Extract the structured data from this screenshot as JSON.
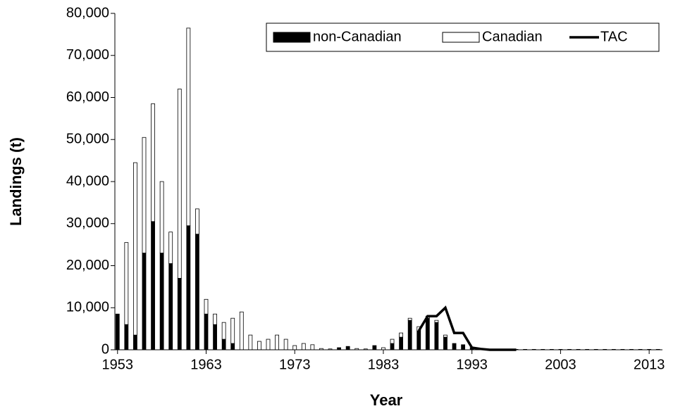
{
  "chart_data": {
    "type": "bar",
    "x_label": "Year",
    "y_label": "Landings (t)",
    "x": [
      1953,
      1954,
      1955,
      1956,
      1957,
      1958,
      1959,
      1960,
      1961,
      1962,
      1963,
      1964,
      1965,
      1966,
      1967,
      1968,
      1969,
      1970,
      1971,
      1972,
      1973,
      1974,
      1975,
      1976,
      1977,
      1978,
      1979,
      1980,
      1981,
      1982,
      1983,
      1984,
      1985,
      1986,
      1987,
      1988,
      1989,
      1990,
      1991,
      1992,
      1993,
      1994,
      1995,
      1996,
      1997,
      1998,
      1999,
      2000,
      2001,
      2002,
      2003,
      2004,
      2005,
      2006,
      2007,
      2008,
      2009,
      2010,
      2011,
      2012,
      2013,
      2014
    ],
    "series": [
      {
        "name": "non-Canadian",
        "color": "#000000",
        "stacked": true,
        "values": [
          8500,
          6000,
          3500,
          23000,
          30500,
          23000,
          20500,
          17000,
          29500,
          27500,
          8500,
          6000,
          2500,
          1500,
          0,
          0,
          0,
          0,
          0,
          0,
          0,
          0,
          0,
          0,
          0,
          500,
          800,
          0,
          0,
          1000,
          0,
          1500,
          3000,
          7000,
          4500,
          7500,
          6500,
          3000,
          1500,
          1200,
          500,
          0,
          0,
          0,
          0,
          0,
          0,
          0,
          0,
          0,
          0,
          0,
          0,
          0,
          0,
          0,
          0,
          0,
          0,
          0,
          0,
          0
        ]
      },
      {
        "name": "Canadian",
        "color": "#ffffff",
        "stacked": true,
        "values": [
          0,
          19500,
          41000,
          27500,
          28000,
          17000,
          7500,
          45000,
          47000,
          6000,
          3500,
          2500,
          4000,
          6000,
          9000,
          3500,
          2000,
          2500,
          3500,
          2500,
          1000,
          1500,
          1200,
          300,
          200,
          0,
          0,
          300,
          200,
          0,
          500,
          1000,
          1000,
          500,
          1000,
          500,
          500,
          500,
          0,
          0,
          0,
          100,
          100,
          100,
          100,
          100,
          100,
          100,
          100,
          100,
          100,
          100,
          100,
          100,
          100,
          100,
          100,
          100,
          100,
          100,
          100,
          100
        ]
      },
      {
        "name": "TAC",
        "color": "#000000",
        "type": "line",
        "values": [
          null,
          null,
          null,
          null,
          null,
          null,
          null,
          null,
          null,
          null,
          null,
          null,
          null,
          null,
          null,
          null,
          null,
          null,
          null,
          null,
          null,
          null,
          null,
          null,
          null,
          null,
          null,
          null,
          null,
          null,
          null,
          null,
          null,
          null,
          4500,
          8000,
          8000,
          10000,
          4000,
          4000,
          500,
          200,
          0,
          0,
          0,
          0,
          null,
          null,
          null,
          null,
          null,
          null,
          null,
          null,
          null,
          null,
          null,
          null,
          null,
          null,
          null,
          null
        ]
      }
    ],
    "xlim": [
      1952.7,
      2014.5
    ],
    "xticks": [
      1953,
      1963,
      1973,
      1983,
      1993,
      2003,
      2013
    ],
    "ylim": [
      0,
      80000
    ],
    "yticks": [
      0,
      {
        "value": 10000,
        "label": "10,000"
      },
      {
        "value": 20000,
        "label": "20,000"
      },
      {
        "value": 30000,
        "label": "30,000"
      },
      {
        "value": 40000,
        "label": "40,000"
      },
      {
        "value": 50000,
        "label": "50,000"
      },
      {
        "value": 60000,
        "label": "60,000"
      },
      {
        "value": 70000,
        "label": "70,000"
      },
      {
        "value": 80000,
        "label": "80,000"
      }
    ],
    "legend": "upper right"
  }
}
